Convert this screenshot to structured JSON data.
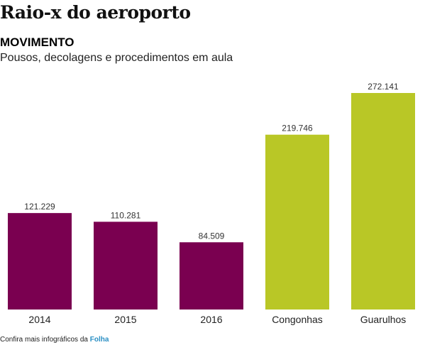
{
  "header": {
    "title": "Raio-x do aeroporto",
    "section": "MOVIMENTO",
    "subtitle": "Pousos, decolagens e procedimentos em aula"
  },
  "chart_data": {
    "type": "bar",
    "categories": [
      "2014",
      "2015",
      "2016",
      "Congonhas",
      "Guarulhos"
    ],
    "values": [
      121229,
      110281,
      84509,
      219746,
      272141
    ],
    "value_labels": [
      "121.229",
      "110.281",
      "84.509",
      "219.746",
      "272.141"
    ],
    "bar_colors": [
      "#7a0050",
      "#7a0050",
      "#7a0050",
      "#b9c726",
      "#b9c726"
    ],
    "title": "",
    "xlabel": "",
    "ylabel": "",
    "ylim": [
      0,
      272141
    ],
    "grid": false,
    "legend": "none"
  },
  "footer": {
    "credit_prefix": "Confira mais infográficos da ",
    "credit_brand": "Folha"
  }
}
